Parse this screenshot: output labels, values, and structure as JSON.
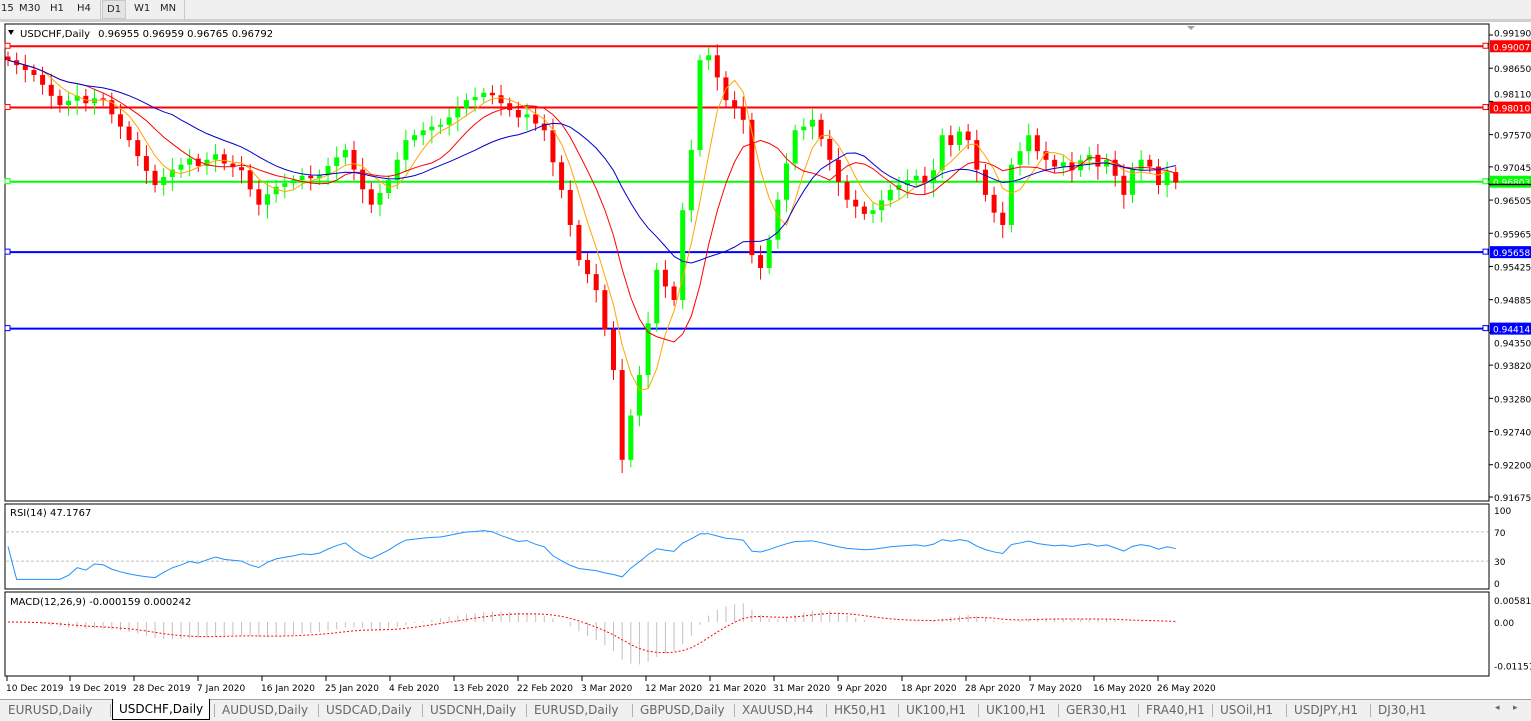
{
  "toolbar": {
    "timeframes": [
      "15",
      "M30",
      "H1",
      "H4",
      "D1",
      "W1",
      "MN"
    ],
    "active": "D1"
  },
  "chart_header": {
    "symbol": "USDCHF,Daily",
    "ohlc": "0.96955 0.96959 0.96765 0.96792"
  },
  "rsi_label": "RSI(14) 47.1767",
  "macd_label": "MACD(12,26,9) -0.000159 0.000242",
  "colors": {
    "bull": "#00ff00",
    "bear": "#ff0000",
    "ma_fast": "#ffa500",
    "ma_mid": "#ff0000",
    "ma_slow": "#0000cc",
    "rsi": "#1e90ff",
    "macd_hist": "#c0c0c0",
    "macd_signal": "#ff0000"
  },
  "chart_data": {
    "type": "candlestick",
    "symbol": "USDCHF",
    "timeframe": "Daily",
    "ylim": [
      0.91675,
      0.9919
    ],
    "y_ticks": [
      "0.99190",
      "0.98650",
      "0.98110",
      "0.97570",
      "0.97045",
      "0.96505",
      "0.95965",
      "0.95425",
      "0.94885",
      "0.94350",
      "0.93820",
      "0.93280",
      "0.92740",
      "0.92200",
      "0.91675"
    ],
    "x_ticks": [
      "10 Dec 2019",
      "19 Dec 2019",
      "28 Dec 2019",
      "7 Jan 2020",
      "16 Jan 2020",
      "25 Jan 2020",
      "4 Feb 2020",
      "13 Feb 2020",
      "22 Feb 2020",
      "3 Mar 2020",
      "12 Mar 2020",
      "21 Mar 2020",
      "31 Mar 2020",
      "9 Apr 2020",
      "18 Apr 2020",
      "28 Apr 2020",
      "7 May 2020",
      "16 May 2020",
      "26 May 2020"
    ],
    "closes": [
      0.9878,
      0.987,
      0.9862,
      0.9854,
      0.9838,
      0.982,
      0.9805,
      0.9812,
      0.982,
      0.9808,
      0.9816,
      0.9813,
      0.979,
      0.977,
      0.9748,
      0.9722,
      0.9698,
      0.9675,
      0.9688,
      0.97,
      0.9708,
      0.9718,
      0.9706,
      0.9716,
      0.9725,
      0.971,
      0.9704,
      0.9699,
      0.9668,
      0.9643,
      0.966,
      0.9672,
      0.9678,
      0.9683,
      0.969,
      0.9686,
      0.9691,
      0.9706,
      0.972,
      0.9732,
      0.97,
      0.9668,
      0.9643,
      0.9662,
      0.9683,
      0.9716,
      0.9748,
      0.9756,
      0.9764,
      0.977,
      0.9773,
      0.9785,
      0.98,
      0.9813,
      0.9818,
      0.9825,
      0.9821,
      0.9808,
      0.9797,
      0.9785,
      0.979,
      0.9775,
      0.9764,
      0.9712,
      0.9667,
      0.961,
      0.9553,
      0.953,
      0.9504,
      0.944,
      0.9374,
      0.9228,
      0.93,
      0.9366,
      0.945,
      0.9537,
      0.951,
      0.9488,
      0.9634,
      0.9732,
      0.9878,
      0.9886,
      0.985,
      0.9813,
      0.98,
      0.9781,
      0.9561,
      0.954,
      0.9586,
      0.9651,
      0.971,
      0.9764,
      0.977,
      0.9781,
      0.975,
      0.9716,
      0.968,
      0.9651,
      0.964,
      0.9628,
      0.9634,
      0.965,
      0.9667,
      0.9675,
      0.9683,
      0.969,
      0.9678,
      0.9699,
      0.9756,
      0.974,
      0.9762,
      0.9748,
      0.97,
      0.9659,
      0.963,
      0.961,
      0.9708,
      0.973,
      0.9756,
      0.973,
      0.9716,
      0.9705,
      0.9712,
      0.9699,
      0.9715,
      0.9724,
      0.9705,
      0.9716,
      0.969,
      0.9659,
      0.97,
      0.9716,
      0.9705,
      0.9675,
      0.9696,
      0.9679
    ],
    "moving_averages": [
      {
        "period": 5,
        "color": "#ffa500"
      },
      {
        "period": 10,
        "color": "#ff0000"
      },
      {
        "period": 20,
        "color": "#0000cc"
      }
    ],
    "horizontal_lines": [
      {
        "price": "0.99007",
        "color": "#ff0000"
      },
      {
        "price": "0.98010",
        "color": "#ff0000"
      },
      {
        "price": "0.96803",
        "color": "#00ff00"
      },
      {
        "price": "0.95658",
        "color": "#0000ff"
      },
      {
        "price": "0.94414",
        "color": "#0000ff"
      }
    ],
    "rsi": {
      "period": 14,
      "levels": [
        "70",
        "30"
      ],
      "ticks": [
        "100",
        "70",
        "30",
        "0"
      ],
      "last": 47.1767
    },
    "macd": {
      "fast": 12,
      "slow": 26,
      "signal": 9,
      "ticks": [
        "0.005818",
        "0.00",
        "-0.01151"
      ]
    }
  },
  "tabs": [
    "EURUSD,Daily",
    "USDCHF,Daily",
    "AUDUSD,Daily",
    "USDCAD,Daily",
    "USDCNH,Daily",
    "EURUSD,Daily",
    "GBPUSD,Daily",
    "XAUUSD,H4",
    "HK50,H1",
    "UK100,H1",
    "UK100,H1",
    "GER30,H1",
    "FRA40,H1",
    "USOil,H1",
    "USDJPY,H1",
    "DJ30,H1"
  ],
  "active_tab": "USDCHF,Daily"
}
